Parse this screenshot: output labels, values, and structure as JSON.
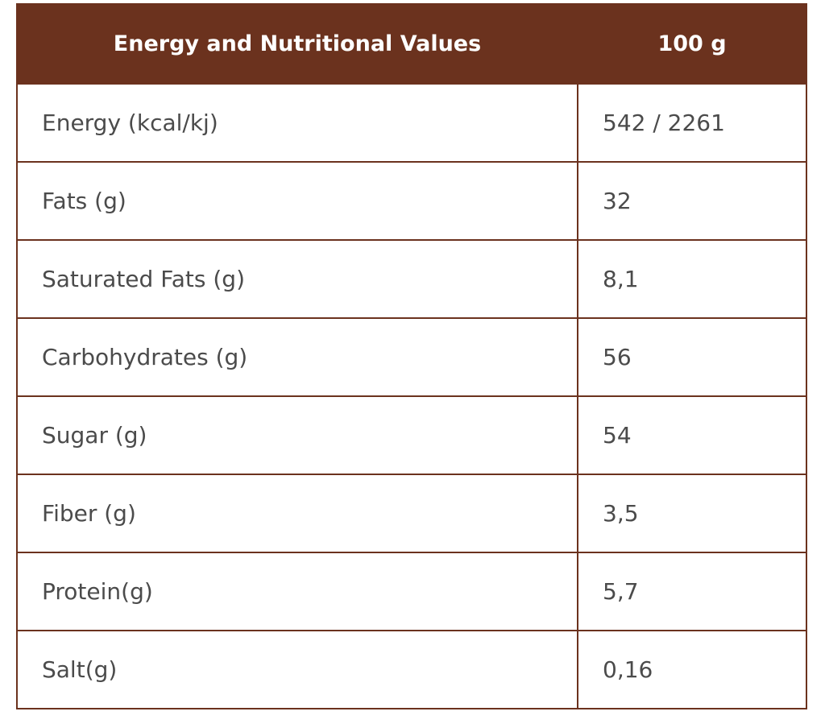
{
  "colors": {
    "header_background": "#6b321e",
    "header_text": "#ffffff",
    "cell_text": "#4b4b4b",
    "border": "#6b321e"
  },
  "table": {
    "headers": [
      "Energy and Nutritional Values",
      "100 g"
    ],
    "rows": [
      {
        "label": "Energy (kcal/kj)",
        "value": "542 / 2261"
      },
      {
        "label": "Fats (g)",
        "value": "32"
      },
      {
        "label": "Saturated Fats (g)",
        "value": "8,1"
      },
      {
        "label": "Carbohydrates (g)",
        "value": "56"
      },
      {
        "label": "Sugar (g)",
        "value": "54"
      },
      {
        "label": "Fiber (g)",
        "value": "3,5"
      },
      {
        "label": "Protein(g)",
        "value": "5,7"
      },
      {
        "label": "Salt(g)",
        "value": "0,16"
      }
    ]
  }
}
